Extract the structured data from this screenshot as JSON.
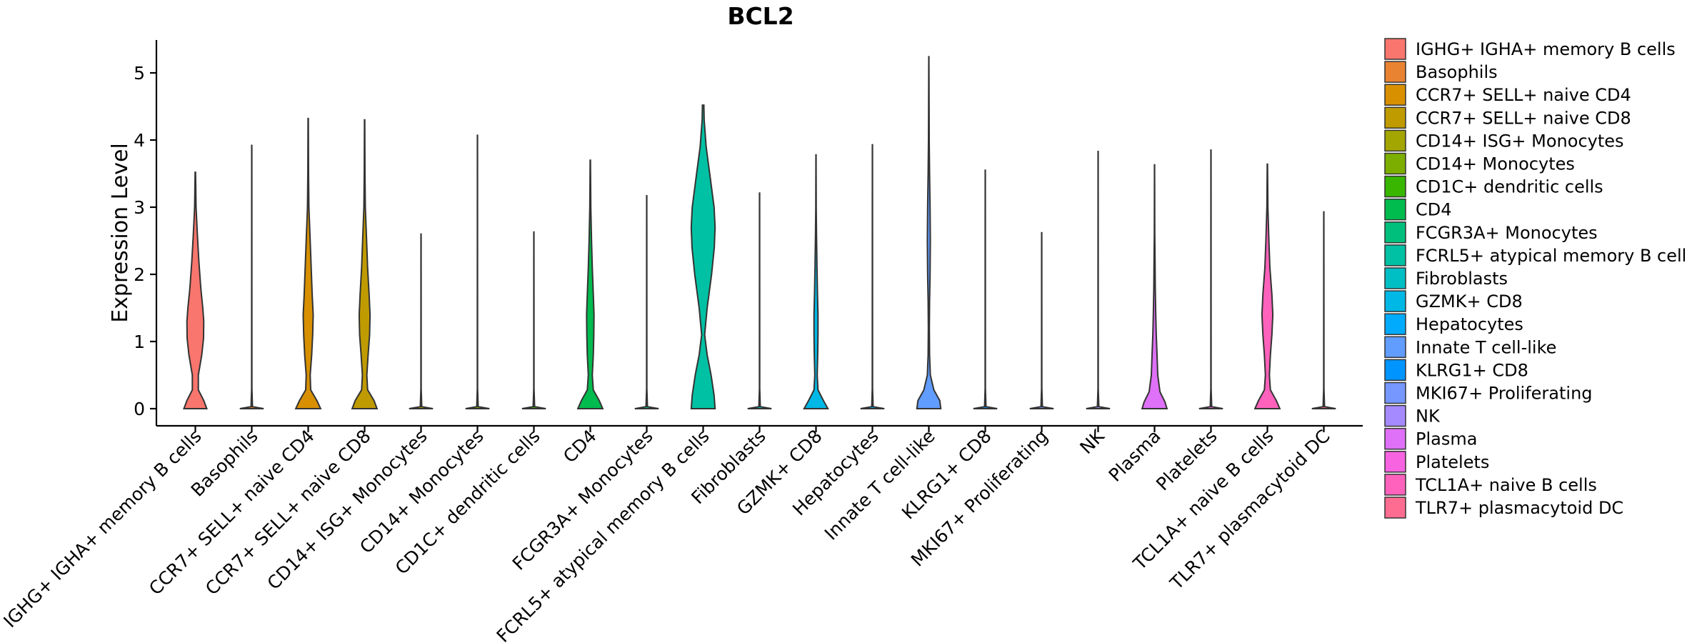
{
  "chart_data": {
    "type": "violin",
    "title": "BCL2",
    "ylabel": "Expression Level",
    "xlabel": "",
    "ylim": [
      -0.25,
      5.5
    ],
    "yticks": [
      0,
      1,
      2,
      3,
      4,
      5
    ],
    "legend_position": "right",
    "categories": [
      {
        "name": "IGHG+ IGHA+ memory B cells",
        "legend": " IGHG+ IGHA+ memory B cells",
        "color": "#F8766D",
        "max": 3.52,
        "profile": [
          [
            0,
            0.46
          ],
          [
            0.12,
            0.34
          ],
          [
            0.28,
            0.12
          ],
          [
            0.5,
            0.12
          ],
          [
            0.8,
            0.26
          ],
          [
            1.05,
            0.33
          ],
          [
            1.3,
            0.34
          ],
          [
            1.5,
            0.3
          ],
          [
            1.8,
            0.22
          ],
          [
            2.2,
            0.14
          ],
          [
            2.6,
            0.08
          ],
          [
            3.0,
            0.03
          ],
          [
            3.52,
            0.01
          ]
        ]
      },
      {
        "name": "Basophils",
        "legend": "Basophils",
        "color": "#EA8331",
        "max": 3.92,
        "profile": [
          [
            0,
            0.48
          ],
          [
            0.03,
            0.03
          ],
          [
            0.3,
            0.006
          ],
          [
            3.92,
            0.004
          ]
        ]
      },
      {
        "name": "CCR7+ SELL+ naive CD4",
        "legend": "CCR7+ SELL+ naive CD4",
        "color": "#D89000",
        "max": 4.32,
        "profile": [
          [
            0,
            0.5
          ],
          [
            0.12,
            0.35
          ],
          [
            0.28,
            0.1
          ],
          [
            0.5,
            0.08
          ],
          [
            0.8,
            0.14
          ],
          [
            1.1,
            0.18
          ],
          [
            1.4,
            0.2
          ],
          [
            1.7,
            0.16
          ],
          [
            2.1,
            0.12
          ],
          [
            2.5,
            0.08
          ],
          [
            3.0,
            0.03
          ],
          [
            3.5,
            0.015
          ],
          [
            4.32,
            0.005
          ]
        ]
      },
      {
        "name": "CCR7+ SELL+ naive CD8",
        "legend": "CCR7+ SELL+ naive CD8",
        "color": "#C09B00",
        "max": 4.3,
        "profile": [
          [
            0,
            0.5
          ],
          [
            0.12,
            0.38
          ],
          [
            0.28,
            0.12
          ],
          [
            0.5,
            0.09
          ],
          [
            0.8,
            0.14
          ],
          [
            1.1,
            0.2
          ],
          [
            1.4,
            0.22
          ],
          [
            1.7,
            0.18
          ],
          [
            2.1,
            0.12
          ],
          [
            2.5,
            0.08
          ],
          [
            3.0,
            0.03
          ],
          [
            3.5,
            0.015
          ],
          [
            4.3,
            0.005
          ]
        ]
      },
      {
        "name": "CD14+ ISG+ Monocytes",
        "legend": "CD14+ ISG+ Monocytes",
        "color": "#A3A500",
        "max": 2.6,
        "profile": [
          [
            0,
            0.48
          ],
          [
            0.03,
            0.03
          ],
          [
            0.3,
            0.006
          ],
          [
            2.6,
            0.004
          ]
        ]
      },
      {
        "name": "CD14+ Monocytes",
        "legend": "CD14+ Monocytes",
        "color": "#7CAE00",
        "max": 4.07,
        "profile": [
          [
            0,
            0.48
          ],
          [
            0.03,
            0.03
          ],
          [
            0.3,
            0.006
          ],
          [
            4.07,
            0.004
          ]
        ]
      },
      {
        "name": "CD1C+ dendritic cells",
        "legend": "CD1C+ dendritic cells",
        "color": "#39B600",
        "max": 2.63,
        "profile": [
          [
            0,
            0.48
          ],
          [
            0.03,
            0.03
          ],
          [
            0.3,
            0.006
          ],
          [
            2.63,
            0.004
          ]
        ]
      },
      {
        "name": "CD4",
        "legend": "CD4",
        "color": "#00BB4E",
        "max": 3.7,
        "profile": [
          [
            0,
            0.5
          ],
          [
            0.12,
            0.36
          ],
          [
            0.28,
            0.12
          ],
          [
            0.5,
            0.08
          ],
          [
            0.8,
            0.12
          ],
          [
            1.1,
            0.14
          ],
          [
            1.4,
            0.15
          ],
          [
            1.7,
            0.12
          ],
          [
            2.1,
            0.08
          ],
          [
            2.5,
            0.05
          ],
          [
            3.0,
            0.02
          ],
          [
            3.7,
            0.005
          ]
        ]
      },
      {
        "name": "FCGR3A+ Monocytes",
        "legend": "FCGR3A+ Monocytes",
        "color": "#00BF7D",
        "max": 3.17,
        "profile": [
          [
            0,
            0.48
          ],
          [
            0.03,
            0.03
          ],
          [
            0.3,
            0.006
          ],
          [
            3.17,
            0.004
          ]
        ]
      },
      {
        "name": "FCRL5+ atypical memory B cells",
        "legend": "FCRL5+ atypical memory B cells",
        "color": "#00C1A3",
        "max": 4.52,
        "profile": [
          [
            0,
            0.48
          ],
          [
            0.2,
            0.44
          ],
          [
            0.5,
            0.32
          ],
          [
            0.8,
            0.16
          ],
          [
            1.1,
            0.06
          ],
          [
            1.5,
            0.16
          ],
          [
            2.0,
            0.34
          ],
          [
            2.4,
            0.45
          ],
          [
            2.7,
            0.48
          ],
          [
            3.0,
            0.44
          ],
          [
            3.4,
            0.3
          ],
          [
            3.9,
            0.12
          ],
          [
            4.3,
            0.04
          ],
          [
            4.52,
            0.03
          ]
        ]
      },
      {
        "name": "Fibroblasts",
        "legend": "Fibroblasts",
        "color": "#00BFC4",
        "max": 3.21,
        "profile": [
          [
            0,
            0.48
          ],
          [
            0.03,
            0.03
          ],
          [
            0.3,
            0.006
          ],
          [
            3.21,
            0.004
          ]
        ]
      },
      {
        "name": "GZMK+ CD8",
        "legend": "GZMK+ CD8",
        "color": "#00B8E5",
        "max": 3.78,
        "profile": [
          [
            0,
            0.48
          ],
          [
            0.12,
            0.3
          ],
          [
            0.28,
            0.08
          ],
          [
            0.5,
            0.05
          ],
          [
            0.8,
            0.07
          ],
          [
            1.1,
            0.08
          ],
          [
            1.4,
            0.08
          ],
          [
            1.7,
            0.06
          ],
          [
            2.1,
            0.04
          ],
          [
            2.6,
            0.02
          ],
          [
            3.0,
            0.01
          ],
          [
            3.78,
            0.004
          ]
        ]
      },
      {
        "name": "Hepatocytes",
        "legend": "Hepatocytes",
        "color": "#00ABFD",
        "max": 3.93,
        "profile": [
          [
            0,
            0.48
          ],
          [
            0.03,
            0.03
          ],
          [
            0.3,
            0.006
          ],
          [
            3.93,
            0.004
          ]
        ]
      },
      {
        "name": "Innate T cell-like",
        "legend": "Innate T cell-like",
        "color": "#619CFF",
        "max": 5.24,
        "profile": [
          [
            0,
            0.48
          ],
          [
            0.12,
            0.44
          ],
          [
            0.28,
            0.2
          ],
          [
            0.5,
            0.06
          ],
          [
            0.8,
            0.03
          ],
          [
            1.2,
            0.02
          ],
          [
            1.6,
            0.03
          ],
          [
            2.0,
            0.05
          ],
          [
            2.5,
            0.06
          ],
          [
            3.0,
            0.05
          ],
          [
            3.5,
            0.03
          ],
          [
            4.0,
            0.015
          ],
          [
            5.24,
            0.004
          ]
        ]
      },
      {
        "name": "KLRG1+ CD8",
        "legend": "KLRG1+ CD8",
        "color": "#0094FF",
        "max": 3.55,
        "profile": [
          [
            0,
            0.48
          ],
          [
            0.03,
            0.03
          ],
          [
            0.3,
            0.006
          ],
          [
            3.55,
            0.004
          ]
        ]
      },
      {
        "name": "MKI67+ Proliferating",
        "legend": "MKI67+ Proliferating",
        "color": "#7597FF",
        "max": 2.62,
        "profile": [
          [
            0,
            0.48
          ],
          [
            0.03,
            0.03
          ],
          [
            0.3,
            0.006
          ],
          [
            2.62,
            0.004
          ]
        ]
      },
      {
        "name": "NK",
        "legend": "NK",
        "color": "#A58AFF",
        "max": 3.83,
        "profile": [
          [
            0,
            0.48
          ],
          [
            0.03,
            0.03
          ],
          [
            0.3,
            0.006
          ],
          [
            3.83,
            0.004
          ]
        ]
      },
      {
        "name": "Plasma",
        "legend": "Plasma",
        "color": "#DF70F8",
        "max": 3.63,
        "profile": [
          [
            0,
            0.5
          ],
          [
            0.1,
            0.42
          ],
          [
            0.25,
            0.22
          ],
          [
            0.5,
            0.13
          ],
          [
            0.8,
            0.1
          ],
          [
            1.1,
            0.07
          ],
          [
            1.4,
            0.05
          ],
          [
            1.8,
            0.03
          ],
          [
            2.2,
            0.02
          ],
          [
            2.6,
            0.01
          ],
          [
            3.63,
            0.004
          ]
        ]
      },
      {
        "name": "Platelets",
        "legend": "Platelets",
        "color": "#F763E0",
        "max": 3.85,
        "profile": [
          [
            0,
            0.48
          ],
          [
            0.03,
            0.03
          ],
          [
            0.3,
            0.006
          ],
          [
            3.85,
            0.004
          ]
        ]
      },
      {
        "name": "TCL1A+ naive B cells",
        "legend": "TCL1A+ naive B cells",
        "color": "#FF62BC",
        "max": 3.64,
        "profile": [
          [
            0,
            0.5
          ],
          [
            0.12,
            0.36
          ],
          [
            0.28,
            0.12
          ],
          [
            0.5,
            0.08
          ],
          [
            0.8,
            0.12
          ],
          [
            1.1,
            0.18
          ],
          [
            1.4,
            0.22
          ],
          [
            1.7,
            0.18
          ],
          [
            2.1,
            0.1
          ],
          [
            2.5,
            0.06
          ],
          [
            3.0,
            0.02
          ],
          [
            3.64,
            0.005
          ]
        ]
      },
      {
        "name": "TLR7+ plasmacytoid DC",
        "legend": "TLR7+ plasmacytoid DC",
        "color": "#FF6C91",
        "max": 2.93,
        "profile": [
          [
            0,
            0.48
          ],
          [
            0.03,
            0.03
          ],
          [
            0.3,
            0.006
          ],
          [
            2.93,
            0.004
          ]
        ]
      }
    ]
  }
}
